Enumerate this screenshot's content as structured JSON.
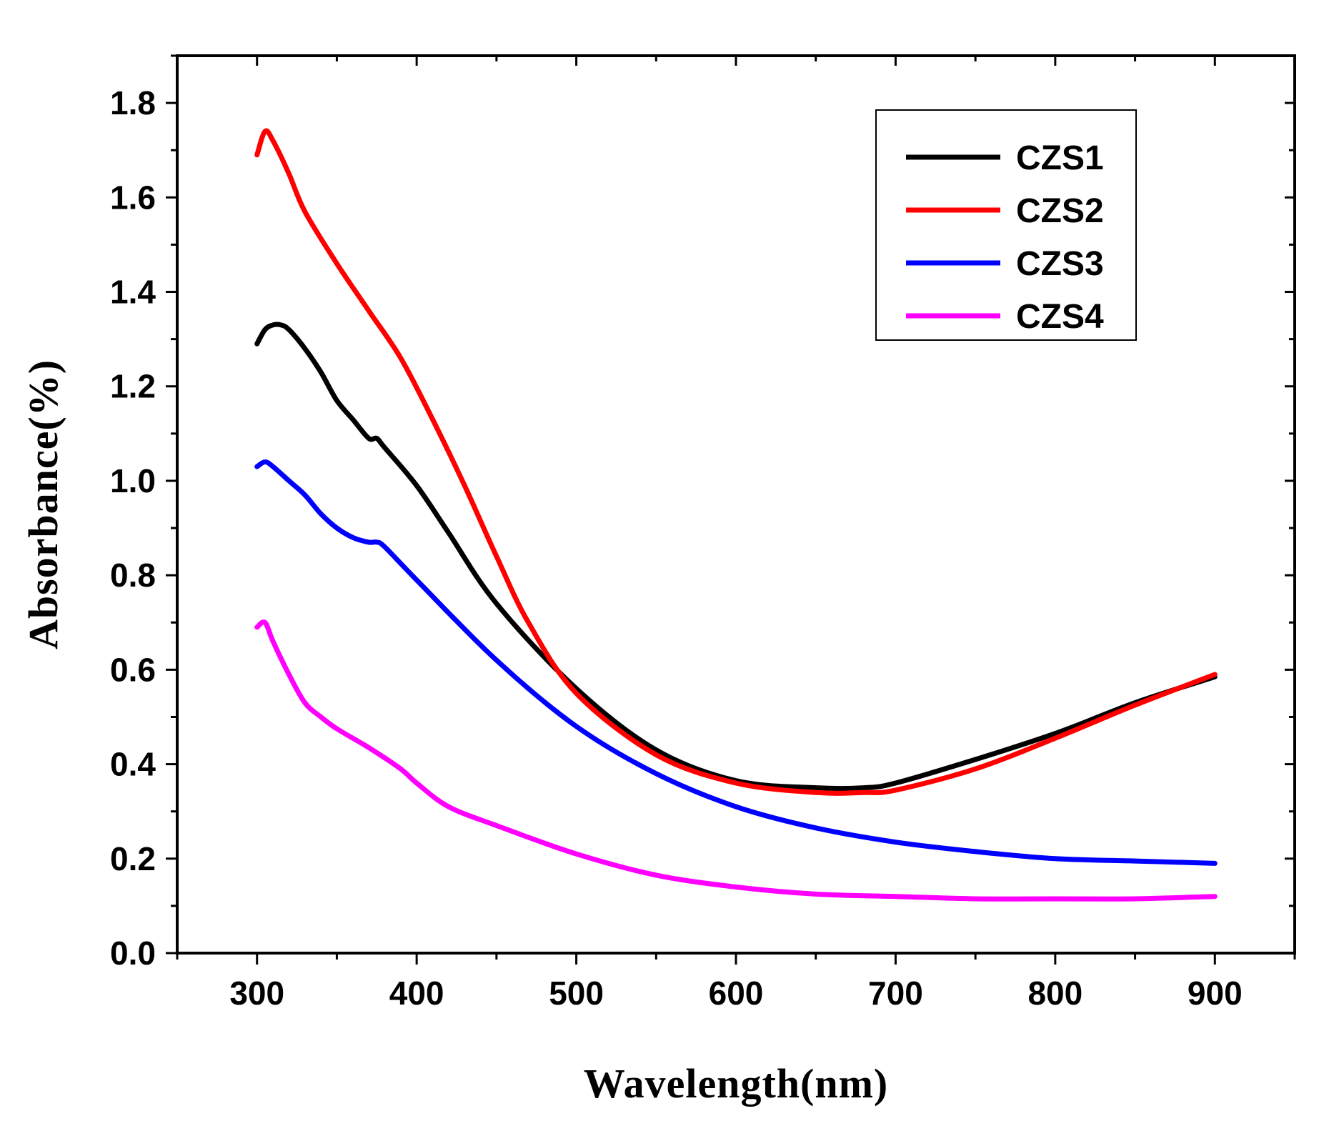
{
  "chart_data": {
    "type": "line",
    "title": "",
    "xlabel": "Wavelength(nm)",
    "ylabel": "Absorbance(%)",
    "xlim": [
      250,
      950
    ],
    "ylim": [
      0.0,
      1.9
    ],
    "xticks": [
      300,
      400,
      500,
      600,
      700,
      800,
      900
    ],
    "xtick_labels": [
      "300",
      "400",
      "500",
      "600",
      "700",
      "800",
      "900"
    ],
    "yticks": [
      0.0,
      0.2,
      0.4,
      0.6,
      0.8,
      1.0,
      1.2,
      1.4,
      1.6,
      1.8
    ],
    "ytick_labels": [
      "0.0",
      "0.2",
      "0.4",
      "0.6",
      "0.8",
      "1.0",
      "1.2",
      "1.4",
      "1.6",
      "1.8"
    ],
    "grid": false,
    "legend_position": "top-right",
    "series": [
      {
        "name": "CZS1",
        "color": "#000000",
        "x": [
          300,
          305,
          310,
          315,
          320,
          330,
          340,
          350,
          360,
          370,
          375,
          380,
          400,
          420,
          450,
          500,
          550,
          600,
          650,
          680,
          700,
          750,
          800,
          850,
          900
        ],
        "y": [
          1.29,
          1.32,
          1.33,
          1.33,
          1.32,
          1.28,
          1.23,
          1.17,
          1.13,
          1.09,
          1.09,
          1.07,
          0.99,
          0.89,
          0.74,
          0.56,
          0.43,
          0.365,
          0.35,
          0.35,
          0.36,
          0.41,
          0.465,
          0.53,
          0.585
        ]
      },
      {
        "name": "CZS2",
        "color": "#ff0000",
        "x": [
          300,
          305,
          310,
          320,
          330,
          350,
          370,
          390,
          410,
          430,
          450,
          470,
          500,
          550,
          600,
          650,
          680,
          700,
          750,
          800,
          850,
          900
        ],
        "y": [
          1.69,
          1.74,
          1.72,
          1.65,
          1.57,
          1.46,
          1.36,
          1.26,
          1.13,
          0.99,
          0.84,
          0.7,
          0.55,
          0.42,
          0.36,
          0.34,
          0.34,
          0.345,
          0.39,
          0.455,
          0.525,
          0.59
        ]
      },
      {
        "name": "CZS3",
        "color": "#0000ff",
        "x": [
          300,
          305,
          310,
          320,
          330,
          340,
          350,
          360,
          370,
          375,
          380,
          400,
          450,
          500,
          550,
          600,
          650,
          700,
          750,
          800,
          850,
          900
        ],
        "y": [
          1.03,
          1.04,
          1.03,
          1.0,
          0.97,
          0.93,
          0.9,
          0.88,
          0.87,
          0.87,
          0.86,
          0.79,
          0.62,
          0.48,
          0.38,
          0.31,
          0.265,
          0.235,
          0.215,
          0.2,
          0.195,
          0.19
        ]
      },
      {
        "name": "CZS4",
        "color": "#ff00ff",
        "x": [
          300,
          305,
          310,
          320,
          330,
          340,
          350,
          370,
          390,
          400,
          420,
          450,
          500,
          550,
          600,
          650,
          700,
          750,
          800,
          850,
          900
        ],
        "y": [
          0.69,
          0.7,
          0.66,
          0.59,
          0.53,
          0.5,
          0.475,
          0.435,
          0.39,
          0.36,
          0.31,
          0.27,
          0.21,
          0.165,
          0.14,
          0.125,
          0.12,
          0.115,
          0.115,
          0.115,
          0.12
        ]
      }
    ]
  }
}
